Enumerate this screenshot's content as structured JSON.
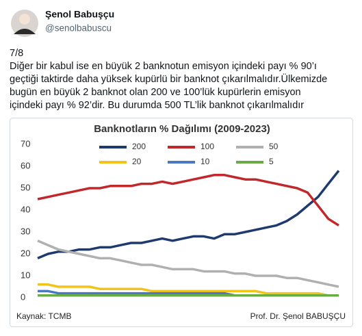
{
  "tweet": {
    "name": "Şenol Babuşçu",
    "handle": "@senolbabuscu",
    "text_lines": [
      "7/8",
      "Diğer bir kabul ise en büyük 2 banknotun emisyon içindeki payı % 90’ı",
      "geçtiği taktirde daha yüksek kupürlü bir banknot çıkarılmalıdır.Ülkemizde",
      "bugün en büyük 2 banknot olan 200 ve 100’lük kupürlerin emisyon",
      "içindeki payı % 92’dir. Bu durumda 500 TL’lik banknot çıkarılmalıdır"
    ]
  },
  "chart_data": {
    "type": "line",
    "title": "Banknotların % Dağılımı (2009-2023)",
    "source": "Kaynak: TCMB",
    "author": "Prof. Dr. Şenol BABUŞÇU",
    "categories": [
      null,
      null,
      null,
      null,
      null,
      null,
      null,
      null,
      null,
      null,
      null,
      null,
      null,
      null,
      null,
      null,
      null,
      null,
      null,
      null,
      null,
      null,
      null,
      null,
      null,
      null,
      null,
      null,
      null,
      null
    ],
    "ylim": [
      0,
      70
    ],
    "yticks": [
      0,
      10,
      20,
      30,
      40,
      50,
      60,
      70
    ],
    "grid": false,
    "series": [
      {
        "name": "200",
        "color": "#1f3a6e",
        "values": [
          18,
          20,
          21,
          21,
          22,
          22,
          23,
          23,
          24,
          25,
          25,
          26,
          27,
          26,
          27,
          28,
          28,
          27,
          29,
          29,
          30,
          31,
          32,
          33,
          35,
          38,
          42,
          46,
          52,
          58
        ]
      },
      {
        "name": "100",
        "color": "#c0282b",
        "values": [
          45,
          46,
          47,
          48,
          49,
          50,
          50,
          51,
          51,
          51,
          52,
          52,
          53,
          52,
          53,
          54,
          55,
          56,
          56,
          55,
          54,
          54,
          53,
          52,
          51,
          50,
          48,
          42,
          36,
          33
        ]
      },
      {
        "name": "50",
        "color": "#b0b0b0",
        "values": [
          26,
          24,
          22,
          21,
          20,
          19,
          18,
          18,
          17,
          16,
          15,
          15,
          14,
          13,
          13,
          13,
          12,
          12,
          12,
          11,
          11,
          10,
          10,
          10,
          9,
          9,
          8,
          7,
          6,
          5
        ]
      },
      {
        "name": "20",
        "color": "#f2c318",
        "values": [
          6,
          6,
          5,
          5,
          5,
          5,
          4,
          4,
          4,
          4,
          4,
          3,
          3,
          3,
          3,
          3,
          3,
          3,
          3,
          3,
          3,
          3,
          2,
          2,
          2,
          2,
          2,
          2,
          1,
          1
        ]
      },
      {
        "name": "10",
        "color": "#4a78c2",
        "values": [
          3,
          3,
          2,
          2,
          2,
          2,
          2,
          2,
          2,
          2,
          2,
          2,
          2,
          2,
          2,
          2,
          2,
          2,
          2,
          1,
          1,
          1,
          1,
          1,
          1,
          1,
          1,
          1,
          1,
          1
        ]
      },
      {
        "name": "5",
        "color": "#6aab46",
        "values": [
          1,
          1,
          1,
          1,
          1,
          1,
          1,
          1,
          1,
          1,
          1,
          1,
          1,
          1,
          1,
          1,
          1,
          1,
          1,
          1,
          1,
          1,
          1,
          1,
          1,
          1,
          1,
          1,
          1,
          1
        ]
      }
    ]
  }
}
